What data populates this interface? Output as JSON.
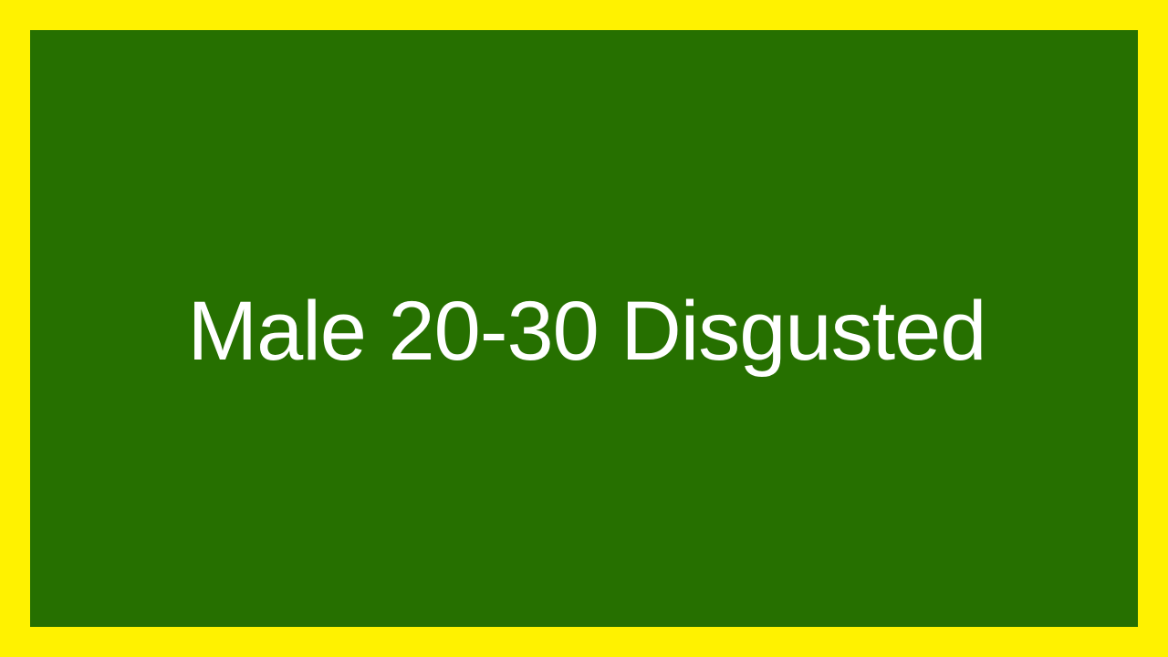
{
  "caption": {
    "text": "Male 20-30 Disgusted"
  },
  "colors": {
    "border": "#FFF200",
    "background": "#267000",
    "text": "#FFFFFF"
  }
}
